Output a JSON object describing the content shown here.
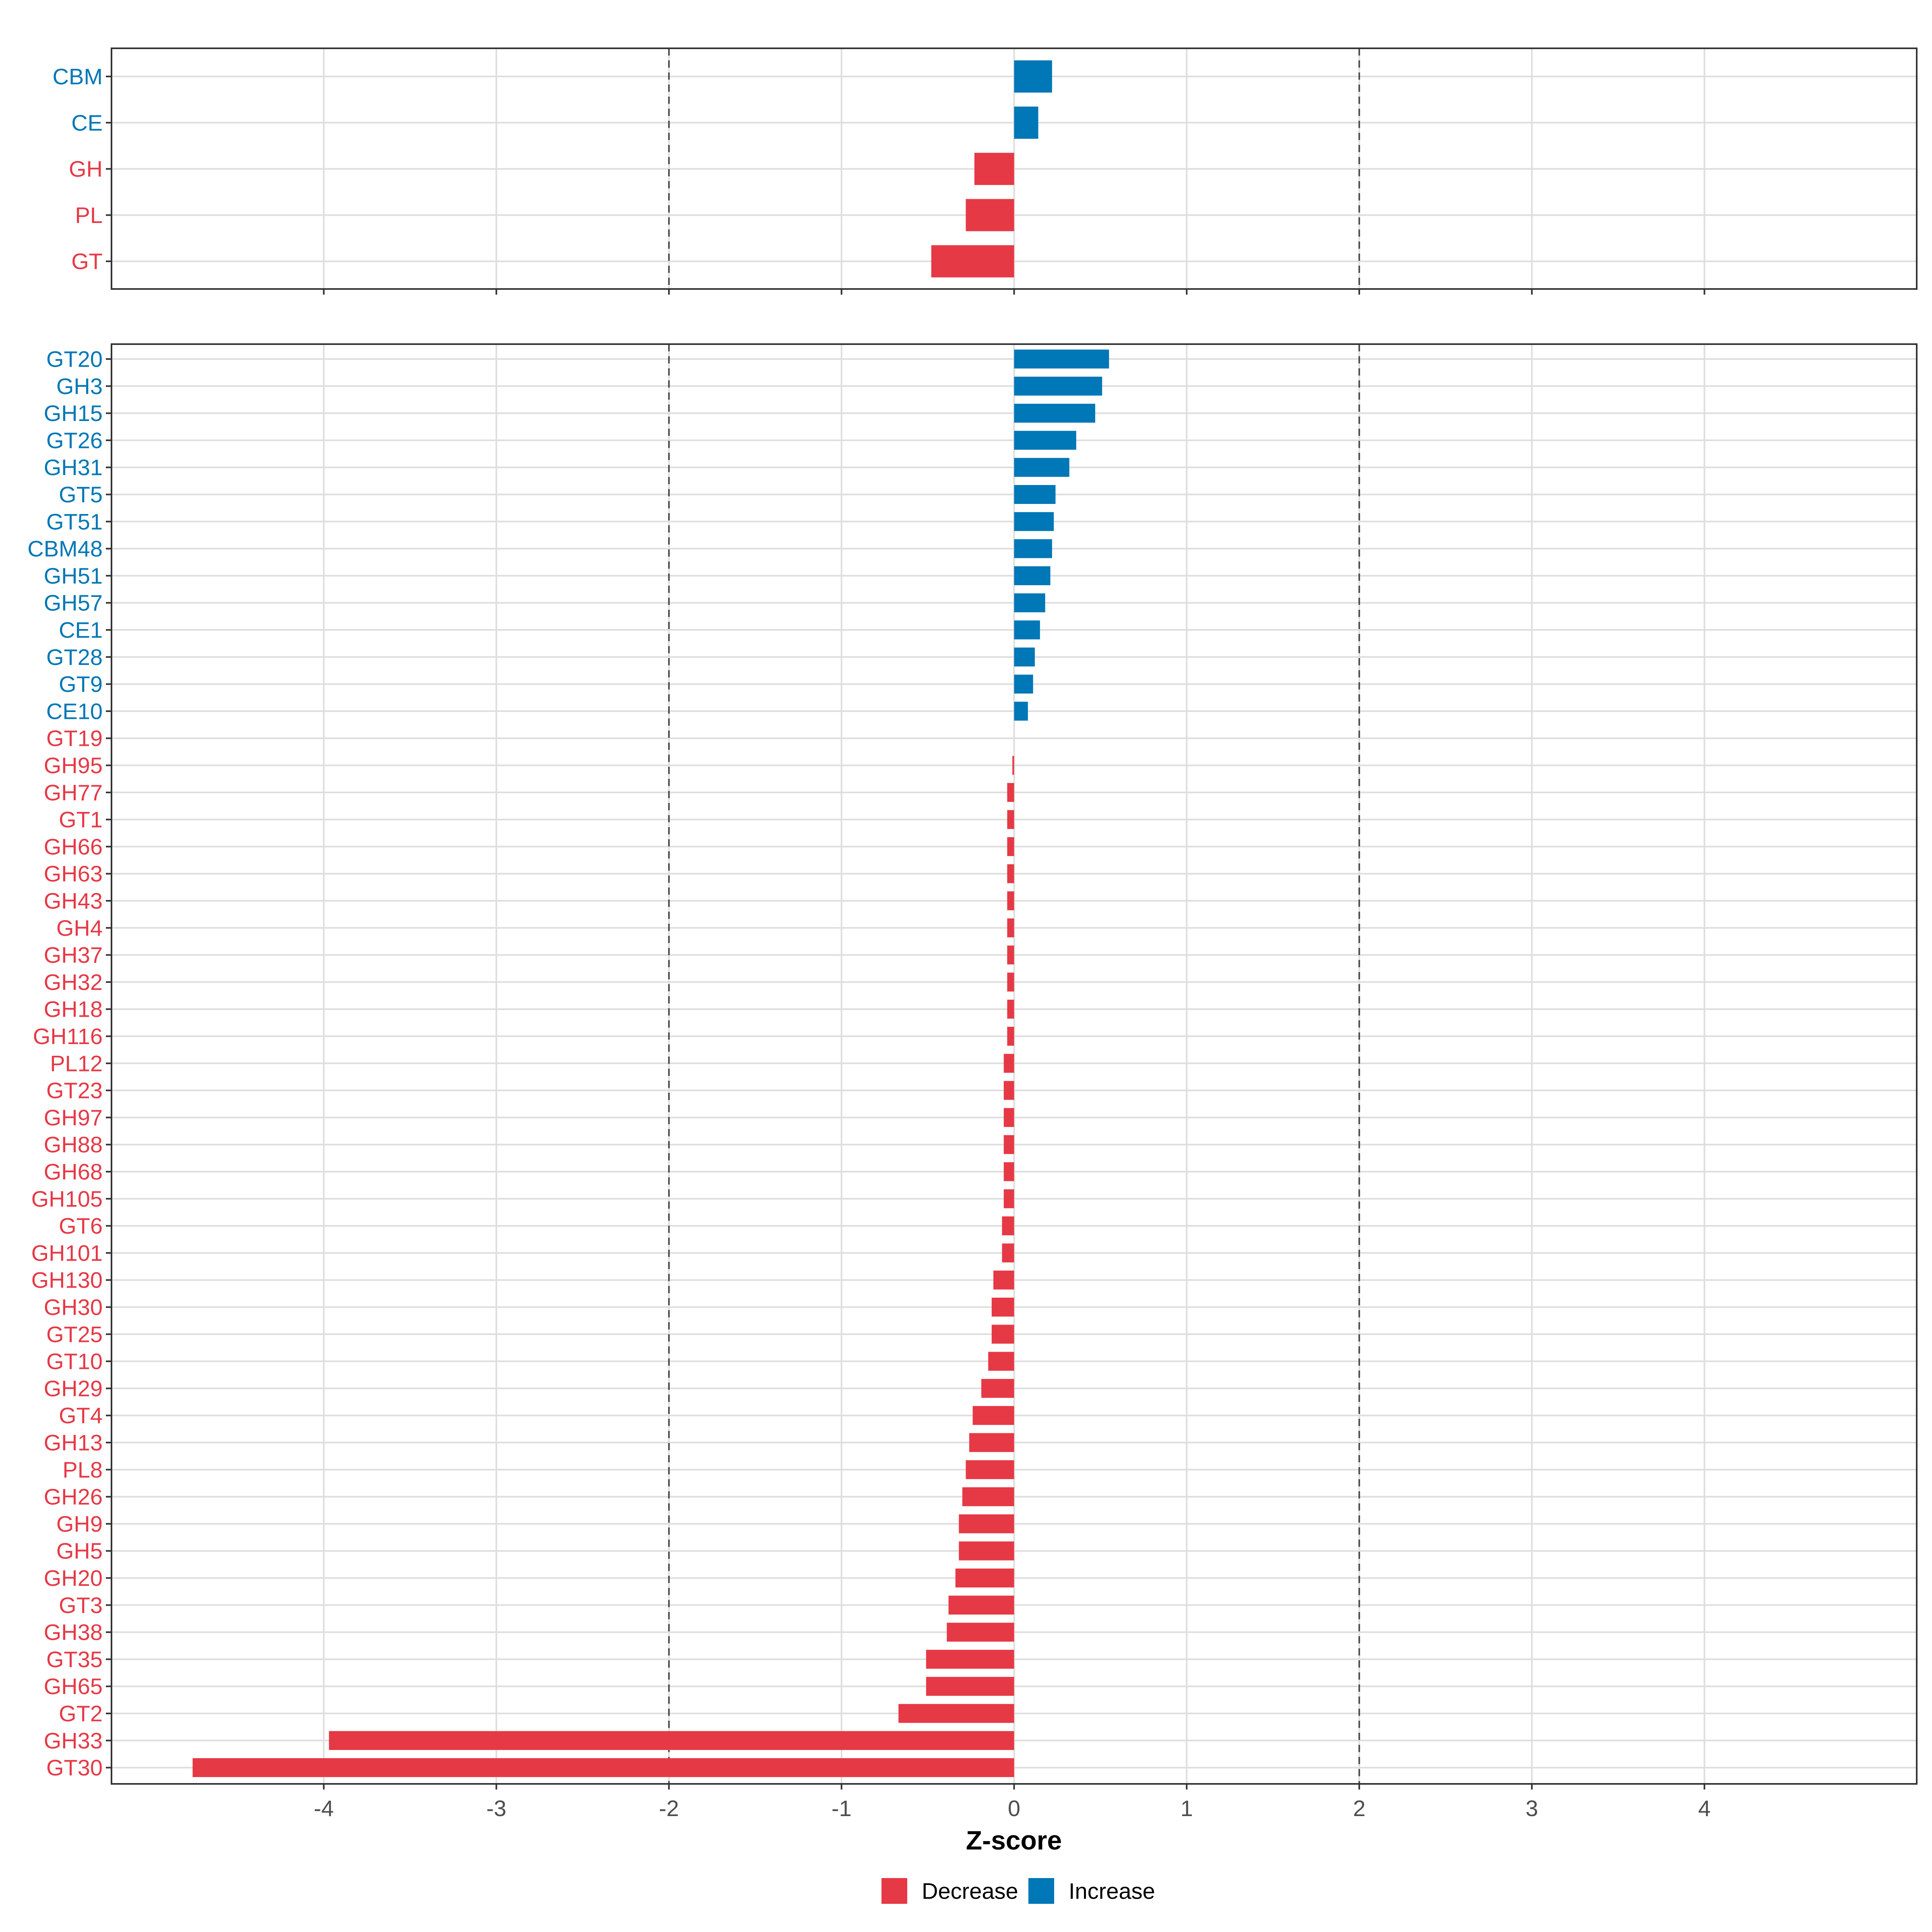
{
  "chart_data": [
    {
      "type": "bar",
      "orientation": "horizontal",
      "panel": "top",
      "categories": [
        "CBM",
        "CE",
        "GH",
        "PL",
        "GT"
      ],
      "values": [
        0.22,
        0.14,
        -0.23,
        -0.28,
        -0.48
      ],
      "xlim": [
        -5.23,
        5.23
      ],
      "xticks": [
        -4,
        -3,
        -2,
        -1,
        0,
        1,
        2,
        3,
        4
      ],
      "reference_lines": [
        -2,
        2
      ],
      "grid": true
    },
    {
      "type": "bar",
      "orientation": "horizontal",
      "panel": "bottom",
      "categories": [
        "GT20",
        "GH3",
        "GH15",
        "GT26",
        "GH31",
        "GT5",
        "GT51",
        "CBM48",
        "GH51",
        "GH57",
        "CE1",
        "GT28",
        "GT9",
        "CE10",
        "GT19",
        "GH95",
        "GH77",
        "GT1",
        "GH66",
        "GH63",
        "GH43",
        "GH4",
        "GH37",
        "GH32",
        "GH18",
        "GH116",
        "PL12",
        "GT23",
        "GH97",
        "GH88",
        "GH68",
        "GH105",
        "GT6",
        "GH101",
        "GH130",
        "GH30",
        "GT25",
        "GT10",
        "GH29",
        "GT4",
        "GH13",
        "PL8",
        "GH26",
        "GH9",
        "GH5",
        "GH20",
        "GT3",
        "GH38",
        "GT35",
        "GH65",
        "GT2",
        "GH33",
        "GT30"
      ],
      "values": [
        0.55,
        0.51,
        0.47,
        0.36,
        0.32,
        0.24,
        0.23,
        0.22,
        0.21,
        0.18,
        0.15,
        0.12,
        0.11,
        0.08,
        0.0,
        -0.01,
        -0.04,
        -0.04,
        -0.04,
        -0.04,
        -0.04,
        -0.04,
        -0.04,
        -0.04,
        -0.04,
        -0.04,
        -0.06,
        -0.06,
        -0.06,
        -0.06,
        -0.06,
        -0.06,
        -0.07,
        -0.07,
        -0.12,
        -0.13,
        -0.13,
        -0.15,
        -0.19,
        -0.24,
        -0.26,
        -0.28,
        -0.3,
        -0.32,
        -0.32,
        -0.34,
        -0.38,
        -0.39,
        -0.51,
        -0.51,
        -0.67,
        -3.97,
        -4.76
      ],
      "xlim": [
        -5.23,
        5.23
      ],
      "xticks": [
        -4,
        -3,
        -2,
        -1,
        0,
        1,
        2,
        3,
        4
      ],
      "reference_lines": [
        -2,
        2
      ],
      "xlabel": "Z-score",
      "grid": true
    }
  ],
  "colors": {
    "decrease": "#E63946",
    "increase": "#0077B6"
  },
  "legend": {
    "position": "bottom",
    "items": [
      {
        "key": "decrease",
        "label": "Decrease"
      },
      {
        "key": "increase",
        "label": "Increase"
      }
    ]
  }
}
